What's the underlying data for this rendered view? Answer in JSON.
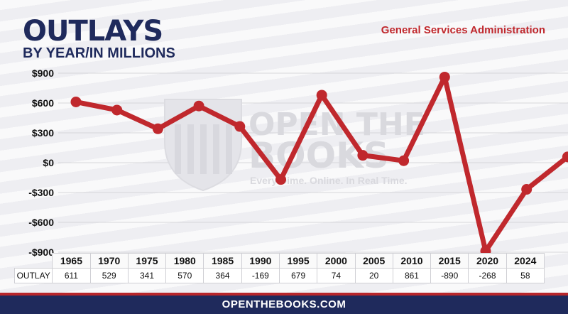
{
  "header": {
    "title": "OUTLAYS",
    "subtitle": "BY YEAR/IN MILLIONS",
    "agency": "General Services Administration"
  },
  "watermark": {
    "line1": "OPEN THE",
    "line2": "BOOKS",
    "tagline": "Every Dime. Online. In Real Time."
  },
  "footer": {
    "text": "OPENTHEBOOKS.COM"
  },
  "colors": {
    "line": "#c0282d",
    "title": "#1f2a5c",
    "footer_bg": "#1f2a5c",
    "accent": "#b8262b"
  },
  "chart_data": {
    "type": "line",
    "title": "OUTLAYS",
    "subtitle": "BY YEAR/IN MILLIONS",
    "xlabel": "",
    "ylabel": "",
    "categories": [
      "1965",
      "1970",
      "1975",
      "1980",
      "1985",
      "1990",
      "1995",
      "2000",
      "2005",
      "2010",
      "2015",
      "2020",
      "2024"
    ],
    "series": [
      {
        "values": [
          611,
          529,
          341,
          570,
          364,
          -169,
          679,
          74,
          20,
          861,
          -890,
          -268,
          58
        ]
      }
    ],
    "ylim": [
      -900,
      900
    ],
    "yticks": [
      900,
      600,
      300,
      0,
      -300,
      -600,
      -900
    ],
    "ytick_labels": [
      "$900",
      "$600",
      "$300",
      "$0",
      "-$300",
      "-$600",
      "-$900"
    ],
    "table_row_label": "OUTLAY",
    "table_values": [
      "611",
      "529",
      "341",
      "570",
      "364",
      "-169",
      "679",
      "74",
      "20",
      "861",
      "-890",
      "-268",
      "58"
    ],
    "grid": true,
    "legend": "none"
  }
}
